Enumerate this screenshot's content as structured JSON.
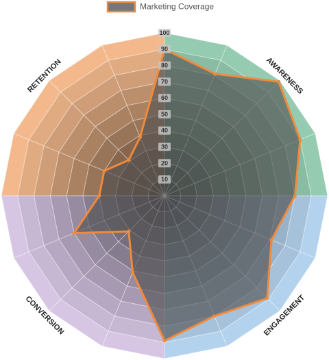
{
  "chart_data": {
    "type": "radar",
    "series": [
      {
        "name": "Marketing Coverage",
        "color": "#f08a3c",
        "fill": "#555555",
        "values": [
          90,
          81,
          99,
          90,
          80,
          71,
          89,
          80,
          89,
          51,
          31,
          60,
          40,
          40,
          31,
          39
        ]
      }
    ],
    "rlim": [
      0,
      100
    ],
    "rticks": [
      10,
      20,
      30,
      40,
      50,
      60,
      70,
      80,
      90,
      100
    ],
    "quadrants": [
      {
        "label": "AWARENESS",
        "color": "#95cbb0"
      },
      {
        "label": "ENGAGEMENT",
        "color": "#b3d2ed"
      },
      {
        "label": "CONVERSION",
        "color": "#d6c6e4"
      },
      {
        "label": "RETENTION",
        "color": "#f3b98c"
      }
    ],
    "grid": true
  }
}
